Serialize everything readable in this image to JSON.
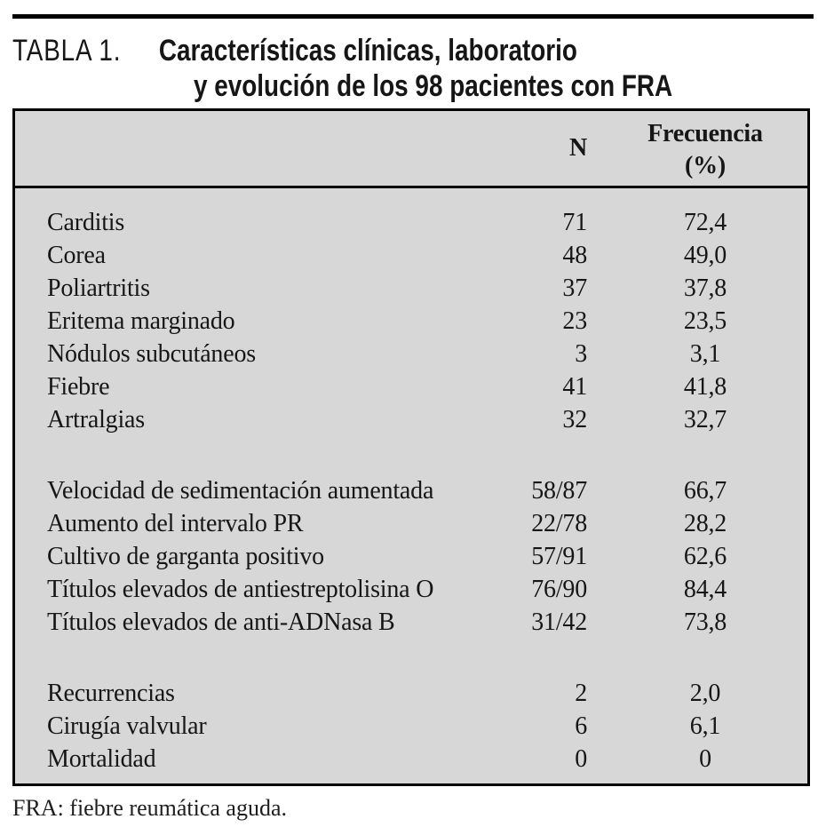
{
  "title": {
    "label": "TABLA 1.",
    "line1": "Características clínicas, laboratorio",
    "line2": "y evolución de los 98 pacientes con FRA"
  },
  "table": {
    "header": {
      "n": "N",
      "frecuencia": "Frecuencia",
      "percent": "(%)"
    },
    "sections": [
      {
        "name": "clinical-manifestations",
        "rows": [
          {
            "label": "Carditis",
            "n": "71",
            "freq": "72,4"
          },
          {
            "label": "Corea",
            "n": "48",
            "freq": "49,0"
          },
          {
            "label": "Poliartritis",
            "n": "37",
            "freq": "37,8"
          },
          {
            "label": "Eritema marginado",
            "n": "23",
            "freq": "23,5"
          },
          {
            "label": "Nódulos subcutáneos",
            "n": "3",
            "freq": "3,1"
          },
          {
            "label": "Fiebre",
            "n": "41",
            "freq": "41,8"
          },
          {
            "label": "Artralgias",
            "n": "32",
            "freq": "32,7"
          }
        ]
      },
      {
        "name": "laboratory",
        "rows": [
          {
            "label": "Velocidad de sedimentación aumentada",
            "n": "58/87",
            "freq": "66,7"
          },
          {
            "label": "Aumento del intervalo PR",
            "n": "22/78",
            "freq": "28,2"
          },
          {
            "label": "Cultivo de garganta positivo",
            "n": "57/91",
            "freq": "62,6"
          },
          {
            "label": "Títulos elevados de antiestreptolisina O",
            "n": "76/90",
            "freq": "84,4"
          },
          {
            "label": "Títulos elevados de anti-ADNasa B",
            "n": "31/42",
            "freq": "73,8"
          }
        ]
      },
      {
        "name": "evolution",
        "rows": [
          {
            "label": "Recurrencias",
            "n": "2",
            "freq": "2,0"
          },
          {
            "label": "Cirugía valvular",
            "n": "6",
            "freq": "6,1"
          },
          {
            "label": "Mortalidad",
            "n": "0",
            "freq": "0"
          }
        ]
      }
    ]
  },
  "footnote": "FRA: fiebre reumática aguda.",
  "colors": {
    "table_bg": "#d7d7d7",
    "rule": "#000000",
    "text": "#161616"
  }
}
